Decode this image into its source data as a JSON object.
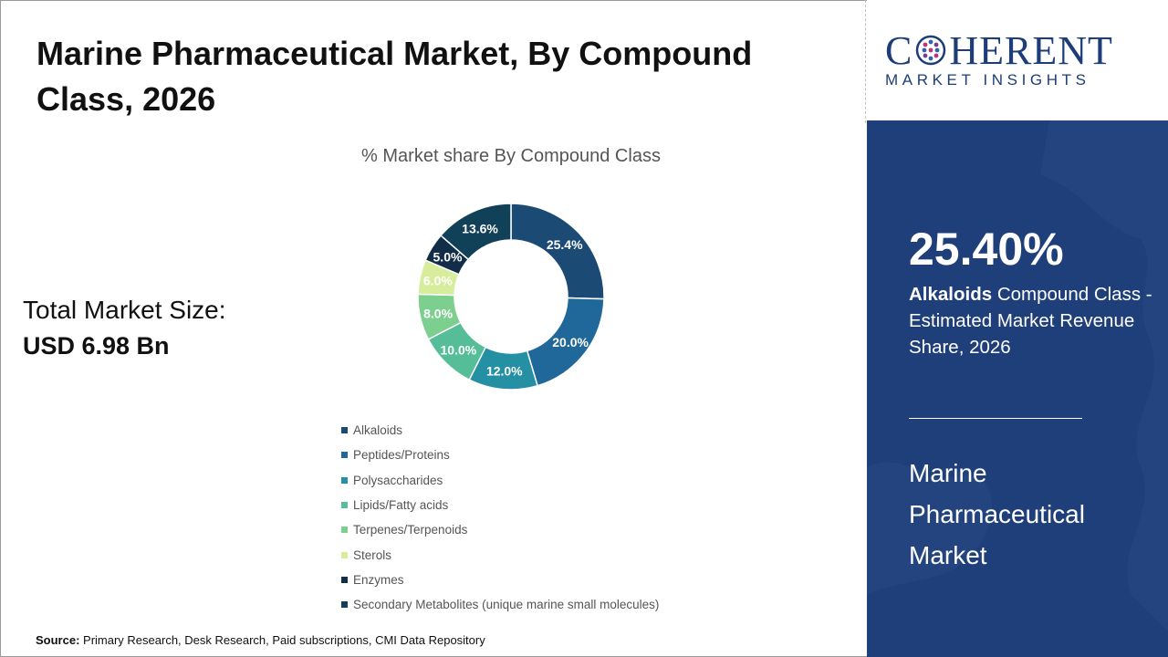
{
  "page": {
    "title": "Marine Pharmaceutical Market, By Compound Class, 2026",
    "total_market_label": "Total Market Size:",
    "total_market_value": "USD 6.98 Bn",
    "source_label": "Source:",
    "source_text": " Primary Research, Desk Research, Paid subscriptions, CMI Data Repository"
  },
  "logo": {
    "word_pre": "C",
    "word_post": "HERENT",
    "tagline": "MARKET INSIGHTS"
  },
  "panel": {
    "stat_value": "25.40%",
    "stat_bold": "Alkaloids",
    "stat_text": " Compound Class - Estimated Market Revenue Share, 2026",
    "market_name": "Marine Pharmaceutical Market"
  },
  "chart_data": {
    "type": "pie",
    "title": "% Market share By Compound Class",
    "categories": [
      "Alkaloids",
      "Peptides/Proteins",
      "Polysaccharides",
      "Lipids/Fatty acids",
      "Terpenes/Terpenoids",
      "Sterols",
      "Enzymes",
      "Secondary Metabolites (unique marine small molecules)"
    ],
    "values": [
      25.4,
      20.0,
      12.0,
      10.0,
      8.0,
      6.0,
      5.0,
      13.6
    ],
    "labels": [
      "25.4%",
      "20.0%",
      "12.0%",
      "10.0%",
      "8.0%",
      "6.0%",
      "5.0%",
      "13.6%"
    ],
    "colors": [
      "#1b4a74",
      "#1f6899",
      "#2590a3",
      "#55bd97",
      "#7ccf8e",
      "#d6ed9c",
      "#112d47",
      "#114059"
    ],
    "legend_position": "bottom"
  }
}
